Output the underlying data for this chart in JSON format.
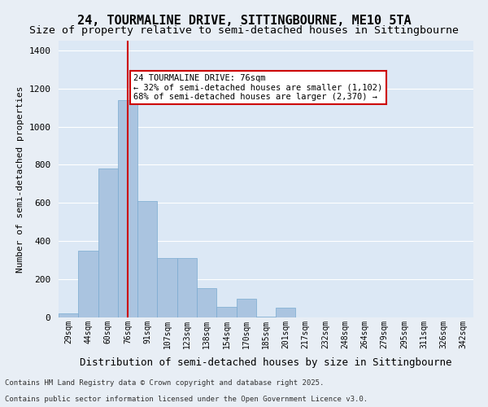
{
  "title_line1": "24, TOURMALINE DRIVE, SITTINGBOURNE, ME10 5TA",
  "title_line2": "Size of property relative to semi-detached houses in Sittingbourne",
  "xlabel": "Distribution of semi-detached houses by size in Sittingbourne",
  "ylabel": "Number of semi-detached properties",
  "categories": [
    "29sqm",
    "44sqm",
    "60sqm",
    "76sqm",
    "91sqm",
    "107sqm",
    "123sqm",
    "138sqm",
    "154sqm",
    "170sqm",
    "185sqm",
    "201sqm",
    "217sqm",
    "232sqm",
    "248sqm",
    "264sqm",
    "279sqm",
    "295sqm",
    "311sqm",
    "326sqm",
    "342sqm"
  ],
  "values": [
    20,
    350,
    780,
    1140,
    610,
    310,
    310,
    155,
    55,
    100,
    5,
    50,
    0,
    0,
    0,
    0,
    0,
    0,
    0,
    0,
    0
  ],
  "bar_color": "#aac4e0",
  "bar_edge_color": "#7aaad0",
  "highlight_index": 3,
  "highlight_line_color": "#cc0000",
  "annotation_text": "24 TOURMALINE DRIVE: 76sqm\n← 32% of semi-detached houses are smaller (1,102)\n68% of semi-detached houses are larger (2,370) →",
  "annotation_box_color": "#ffffff",
  "annotation_box_edge": "#cc0000",
  "ylim": [
    0,
    1450
  ],
  "yticks": [
    0,
    200,
    400,
    600,
    800,
    1000,
    1200,
    1400
  ],
  "bg_color": "#e8eef5",
  "plot_bg_color": "#dce8f5",
  "grid_color": "#ffffff",
  "footer_line1": "Contains HM Land Registry data © Crown copyright and database right 2025.",
  "footer_line2": "Contains public sector information licensed under the Open Government Licence v3.0."
}
